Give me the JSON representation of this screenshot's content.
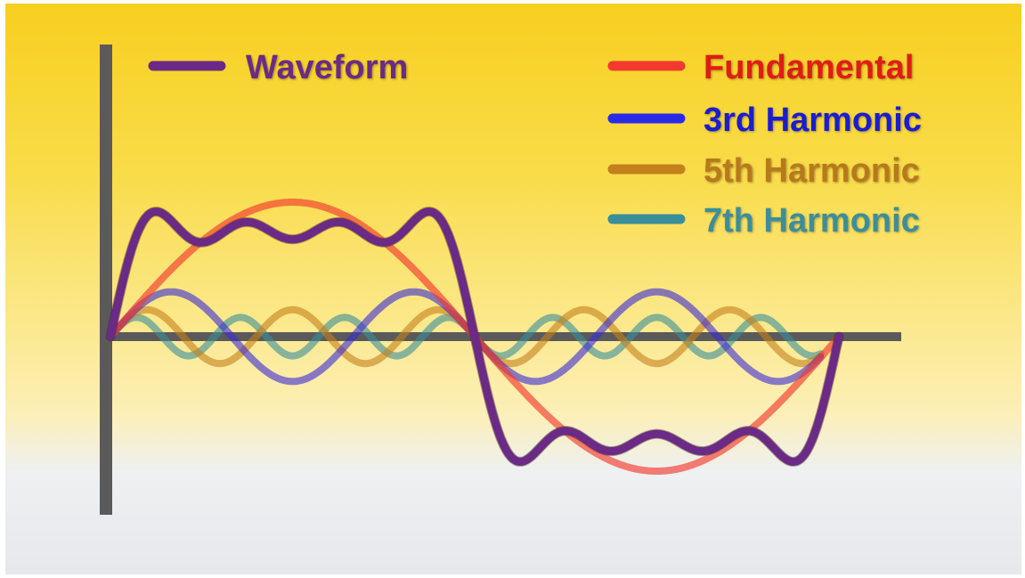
{
  "chart_data": {
    "type": "line",
    "title": "",
    "xlabel": "",
    "ylabel": "",
    "x_range": [
      0,
      1.2
    ],
    "y_range": [
      -1.6,
      1.6
    ],
    "grid": false,
    "legend_placement": "top",
    "series": [
      {
        "name": "Waveform",
        "color": "#6a2a86",
        "kind": "sum",
        "harmonics": [
          1,
          3,
          5,
          7
        ],
        "amplitudes": [
          1.0,
          0.3333,
          0.2,
          0.1429
        ]
      },
      {
        "name": "Fundamental",
        "color": "#f23a2e",
        "harmonic": 1,
        "amplitude": 1.0
      },
      {
        "name": "3rd Harmonic",
        "color": "#3a2bd6",
        "harmonic": 3,
        "amplitude": 0.3333
      },
      {
        "name": "5th Harmonic",
        "color": "#c4801a",
        "harmonic": 5,
        "amplitude": 0.2
      },
      {
        "name": "7th Harmonic",
        "color": "#3a8e9a",
        "harmonic": 7,
        "amplitude": 0.1429
      }
    ]
  },
  "legend": {
    "items": [
      {
        "label": "Waveform",
        "color": "#6a2a86",
        "text_color": "#6a2a86"
      },
      {
        "label": "Fundamental",
        "color": "#f23a2e",
        "text_color": "#e01e14"
      },
      {
        "label": "3rd Harmonic",
        "color": "#2a2be8",
        "text_color": "#1a1ad0"
      },
      {
        "label": "5th Harmonic",
        "color": "#c4801a",
        "text_color": "#b8791c"
      },
      {
        "label": "7th Harmonic",
        "color": "#3a8e9a",
        "text_color": "#3a8e9a"
      }
    ]
  },
  "colors": {
    "axis": "#5a5a5a"
  }
}
